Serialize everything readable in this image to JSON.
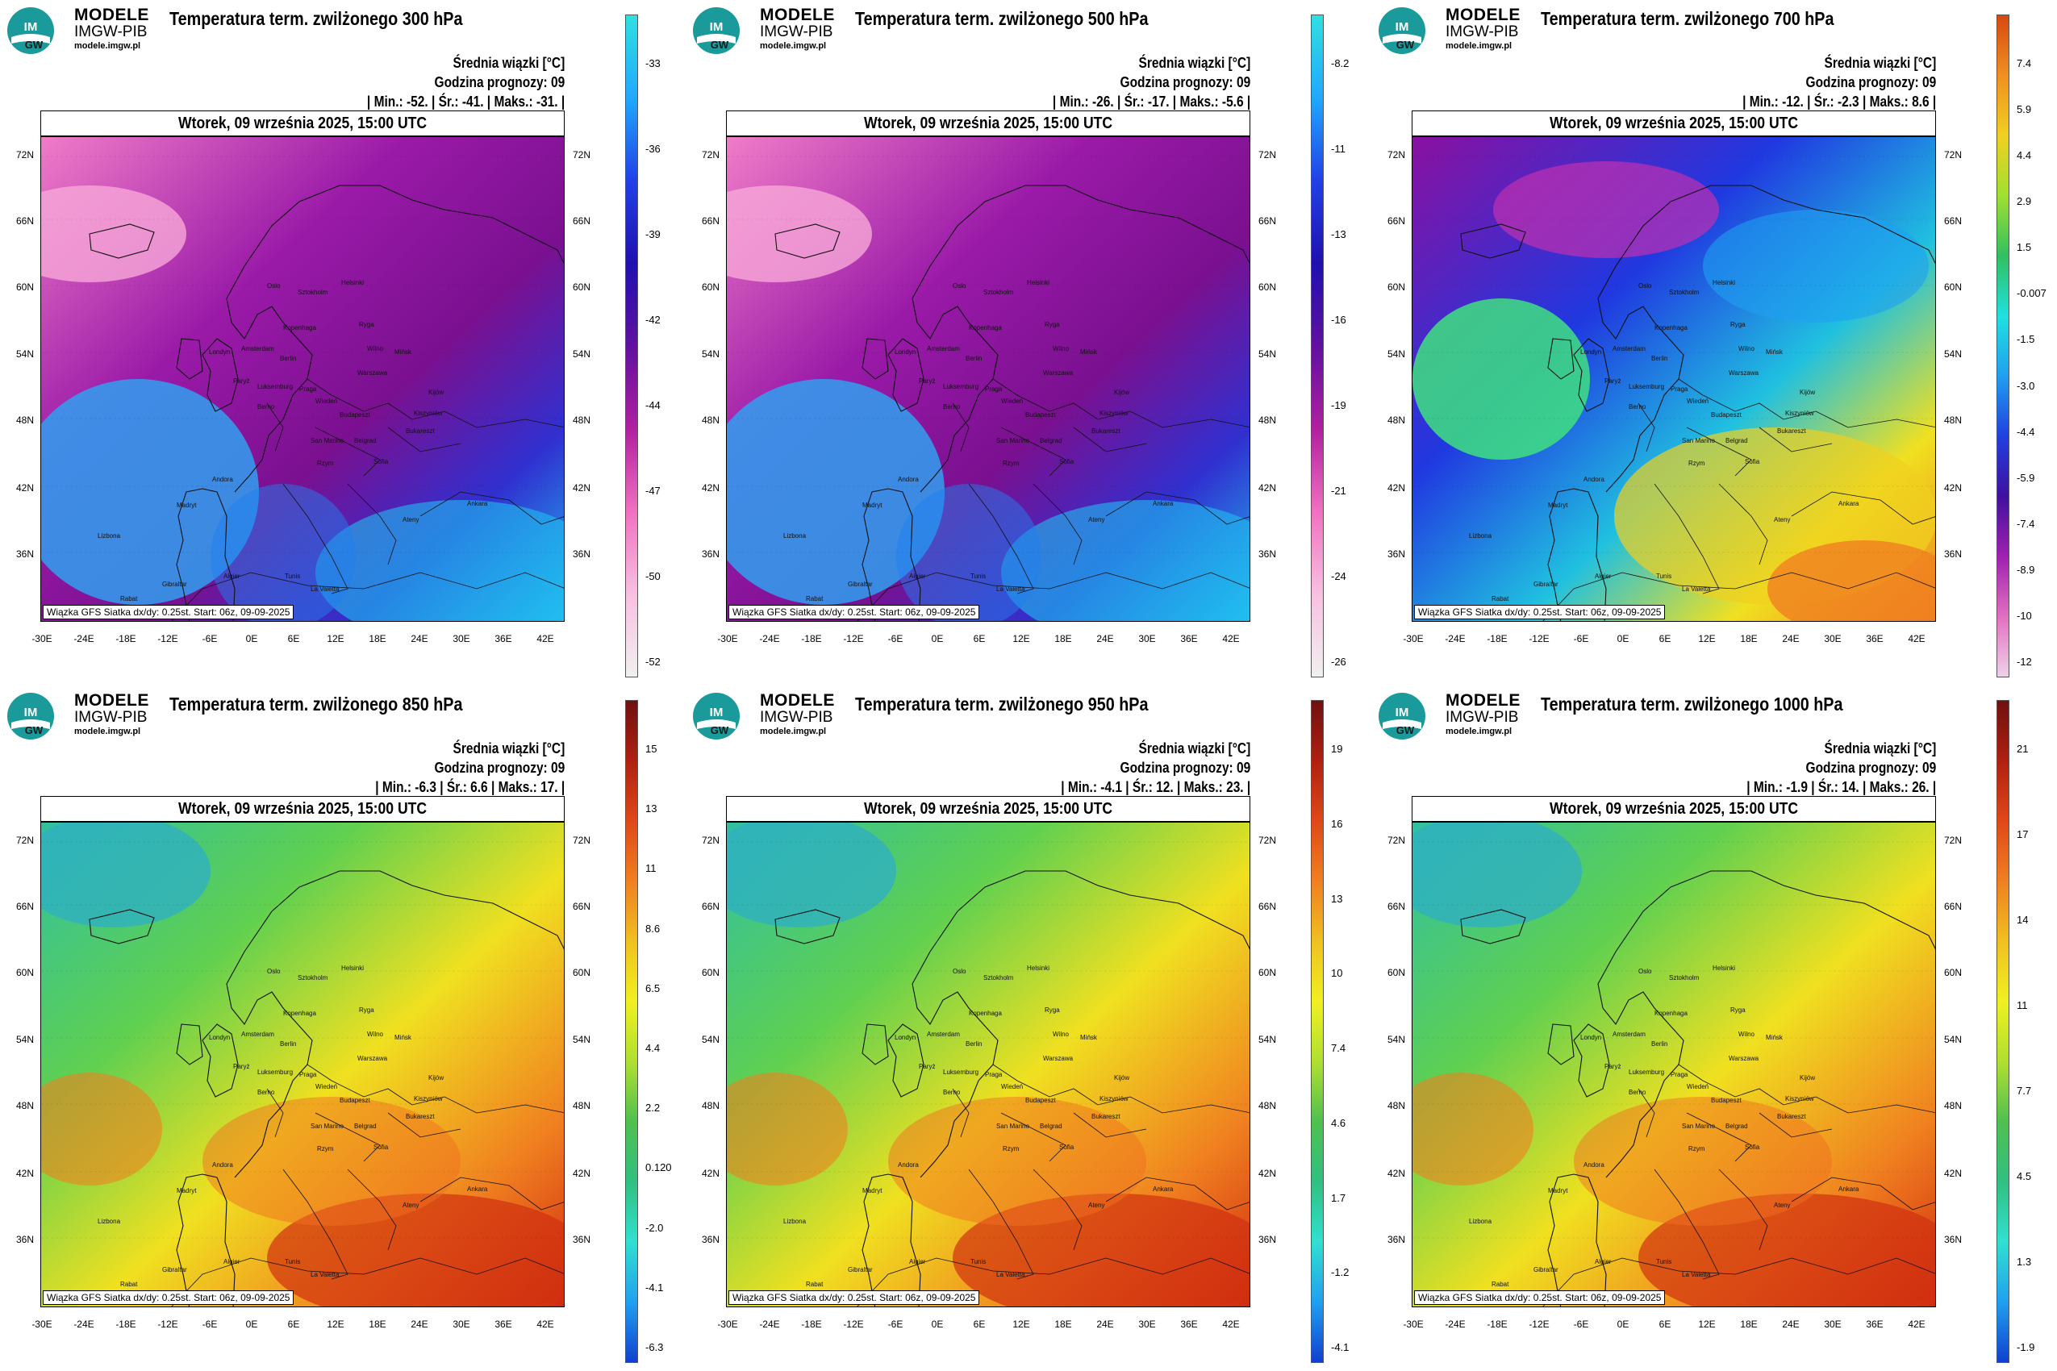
{
  "brand": {
    "line1": "MODELE",
    "line2": "IMGW-PIB",
    "line3": "modele.imgw.pl",
    "logo_text": "IM GW"
  },
  "common": {
    "date": "Wtorek, 09 września 2025, 15:00 UTC",
    "mean_label": "Średnia wiązki [°C]",
    "forecast_hour": "Godzina prognozy: 09",
    "footer": "Wiązka GFS Siatka dx/dy: 0.25st. Start: 06z, 09-09-2025",
    "lat_labels": [
      "72N",
      "66N",
      "60N",
      "54N",
      "48N",
      "42N",
      "36N"
    ],
    "lon_labels": [
      "-30E",
      "-24E",
      "-18E",
      "-12E",
      "-6E",
      "0E",
      "6E",
      "12E",
      "18E",
      "24E",
      "30E",
      "36E",
      "42E"
    ],
    "cities": [
      "Oslo",
      "Sztokholm",
      "Helsinki",
      "Ryga",
      "Wilno",
      "Mińsk",
      "Kopenhaga",
      "Londyn",
      "Amsterdam",
      "Berlin",
      "Warszawa",
      "Kijów",
      "Paryż",
      "Luksemburg",
      "Praga",
      "Wiedeń",
      "Budapeszt",
      "Kiszyniów",
      "Bukareszt",
      "Belgrad",
      "Sofia",
      "Berno",
      "San Marino",
      "Rzym",
      "Andora",
      "Madryt",
      "Lizbona",
      "Gibraltar",
      "Rabat",
      "Algier",
      "Tunis",
      "La Valetta",
      "Ankara",
      "Ateny"
    ]
  },
  "panels": [
    {
      "title": "Temperatura term. zwilżonego 300 hPa",
      "minmax": "| Min.: -52. | Śr.: -41. | Maks.: -31. |",
      "stats": {
        "min": -52,
        "mean": -41,
        "max": -31
      },
      "scale": "cold",
      "colorbar_labels": [
        "-33",
        "-36",
        "-39",
        "-42",
        "-44",
        "-47",
        "-50",
        "-52"
      ]
    },
    {
      "title": "Temperatura term. zwilżonego 500 hPa",
      "minmax": "| Min.: -26. | Śr.: -17. | Maks.: -5.6 |",
      "stats": {
        "min": -26,
        "mean": -17,
        "max": -5.6
      },
      "scale": "cold",
      "colorbar_labels": [
        "-8.2",
        "-11",
        "-13",
        "-16",
        "-19",
        "-21",
        "-24",
        "-26"
      ]
    },
    {
      "title": "Temperatura term. zwilżonego 700 hPa",
      "minmax": "| Min.: -12. | Śr.: -2.3 | Maks.: 8.6 |",
      "stats": {
        "min": -12,
        "mean": -2.3,
        "max": 8.6
      },
      "scale": "full",
      "colorbar_labels": [
        "7.4",
        "5.9",
        "4.4",
        "2.9",
        "1.5",
        "-0.007",
        "-1.5",
        "-3.0",
        "-4.4",
        "-5.9",
        "-7.4",
        "-8.9",
        "-10",
        "-12"
      ]
    },
    {
      "title": "Temperatura term. zwilżonego 850 hPa",
      "minmax": "| Min.: -6.3 | Śr.: 6.6 | Maks.: 17. |",
      "stats": {
        "min": -6.3,
        "mean": 6.6,
        "max": 17
      },
      "scale": "warm",
      "colorbar_labels": [
        "15",
        "13",
        "11",
        "8.6",
        "6.5",
        "4.4",
        "2.2",
        "0.120",
        "-2.0",
        "-4.1",
        "-6.3"
      ]
    },
    {
      "title": "Temperatura term. zwilżonego 950 hPa",
      "minmax": "| Min.: -4.1 | Śr.: 12. | Maks.: 23. |",
      "stats": {
        "min": -4.1,
        "mean": 12,
        "max": 23
      },
      "scale": "warm",
      "colorbar_labels": [
        "19",
        "16",
        "13",
        "10",
        "7.4",
        "4.6",
        "1.7",
        "-1.2",
        "-4.1"
      ]
    },
    {
      "title": "Temperatura term. zwilżonego 1000 hPa",
      "minmax": "| Min.: -1.9 | Śr.: 14. | Maks.: 26. |",
      "stats": {
        "min": -1.9,
        "mean": 14,
        "max": 26
      },
      "scale": "warm",
      "colorbar_labels": [
        "21",
        "17",
        "14",
        "11",
        "7.7",
        "4.5",
        "1.3",
        "-1.9"
      ]
    }
  ],
  "colors": {
    "cold": [
      "#8a0a8a",
      "#a020b0",
      "#d050c0",
      "#f080c8",
      "#f8b0d8",
      "#f0e0ee"
    ],
    "cold_bar": [
      "#30e0e0",
      "#20a8ff",
      "#2040e8",
      "#2010b0",
      "#6010a0",
      "#b020a0",
      "#f070c0",
      "#f8c0e0",
      "#f0f0f0"
    ],
    "full_bar": [
      "#d84810",
      "#f09020",
      "#f0d020",
      "#a0e030",
      "#30c060",
      "#20e0e0",
      "#20a0f0",
      "#2040e0",
      "#4010a0",
      "#a020b0",
      "#e070c0",
      "#f0d0e8"
    ],
    "warm_bar": [
      "#701010",
      "#b02010",
      "#e04818",
      "#f08020",
      "#f0c020",
      "#f0f020",
      "#b0e030",
      "#50c050",
      "#30c080",
      "#30e0d0",
      "#20a0f0",
      "#1040d0"
    ]
  }
}
